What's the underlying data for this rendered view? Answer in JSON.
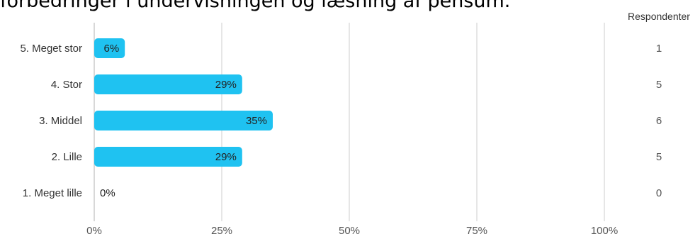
{
  "title": "forbedringer i undervisningen og læsning af pensum.",
  "chart_data": {
    "type": "bar",
    "orientation": "horizontal",
    "categories": [
      "5. Meget stor",
      "4. Stor",
      "3. Middel",
      "2. Lille",
      "1. Meget lille"
    ],
    "values": [
      6,
      29,
      35,
      29,
      0
    ],
    "value_labels": [
      "6%",
      "29%",
      "35%",
      "29%",
      "0%"
    ],
    "respondents_header": "Respondenter",
    "respondents": [
      "1",
      "5",
      "6",
      "5",
      "0"
    ],
    "x_ticks": [
      0,
      25,
      50,
      75,
      100
    ],
    "x_tick_labels": [
      "0%",
      "25%",
      "50%",
      "75%",
      "100%"
    ],
    "xlim": [
      0,
      100
    ],
    "grid": true,
    "colors": {
      "bar": "#1fc2f1",
      "grid": "#cccccc",
      "label": "#333333",
      "tick": "#555555"
    }
  }
}
